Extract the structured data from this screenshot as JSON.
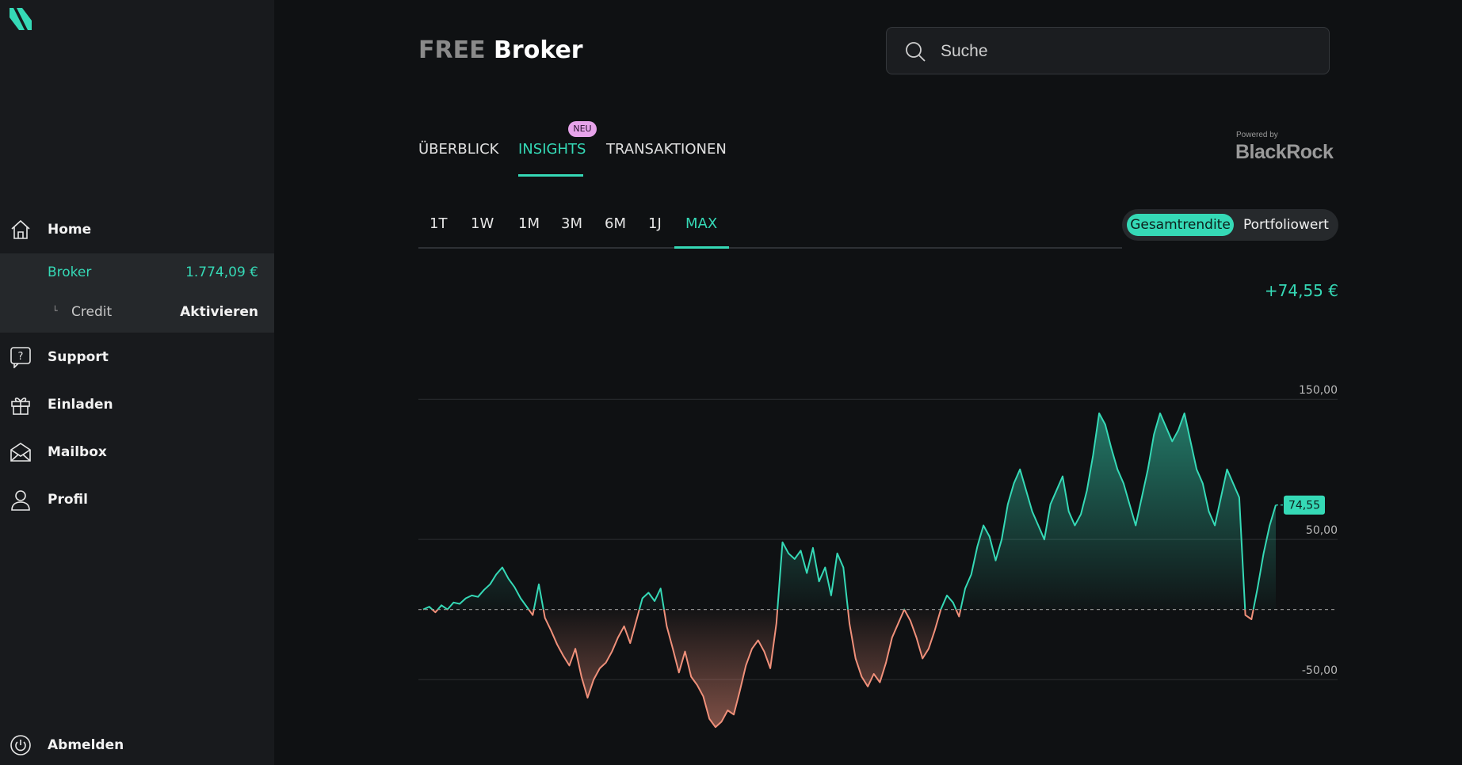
{
  "sidebar": {
    "logo_icon": "s-logo-icon",
    "home_label": "Home",
    "broker_label": "Broker",
    "broker_value": "1.774,09 €",
    "credit_corner": "└",
    "credit_label": "Credit",
    "credit_action": "Aktivieren",
    "support_label": "Support",
    "invite_label": "Einladen",
    "mail_label": "Mailbox",
    "profile_label": "Profil",
    "logout_label": "Abmelden"
  },
  "header": {
    "title_prefix": "FREE",
    "title": "Broker",
    "search_placeholder": "Suche"
  },
  "tabs": {
    "overview": "ÜBERBLICK",
    "insights": "INSIGHTS",
    "insights_badge": "NEU",
    "transactions": "TRANSAKTIONEN",
    "active": "insights"
  },
  "powered": {
    "text": "Powered by",
    "brand": "BlackRock"
  },
  "ranges": {
    "items": [
      "1T",
      "1W",
      "1M",
      "3M",
      "6M",
      "1J",
      "MAX"
    ],
    "active": "MAX"
  },
  "toggle": {
    "option1": "Gesamtrendite",
    "option2": "Portfoliowert",
    "active": "Gesamtrendite"
  },
  "summary": {
    "gain": "+74,55 €"
  },
  "colors": {
    "accent": "#35d9b6",
    "negative": "#f0907a",
    "background": "#0f1113",
    "sidebar": "#181a1d"
  },
  "chart_data": {
    "type": "area",
    "ylim": [
      -85,
      175
    ],
    "y_ticks": [
      {
        "value": 150,
        "label": "150,00"
      },
      {
        "value": 50,
        "label": "50,00"
      },
      {
        "value": -50,
        "label": "-50,00"
      }
    ],
    "baseline": 0,
    "current_value": 74.55,
    "current_label": "74,55",
    "grid": true,
    "values": [
      0,
      2,
      -2,
      3,
      0,
      5,
      4,
      8,
      10,
      9,
      14,
      18,
      25,
      30,
      22,
      16,
      8,
      2,
      -4,
      18,
      -6,
      -15,
      -25,
      -33,
      -40,
      -28,
      -48,
      -63,
      -50,
      -42,
      -38,
      -30,
      -20,
      -12,
      -24,
      -8,
      8,
      12,
      6,
      15,
      -12,
      -28,
      -45,
      -30,
      -48,
      -54,
      -62,
      -78,
      -84,
      -80,
      -72,
      -75,
      -58,
      -40,
      -28,
      -22,
      -30,
      -42,
      -10,
      48,
      40,
      36,
      42,
      26,
      44,
      20,
      30,
      10,
      40,
      30,
      -10,
      -35,
      -48,
      -55,
      -46,
      -52,
      -38,
      -20,
      -10,
      0,
      -8,
      -20,
      -35,
      -28,
      -15,
      0,
      10,
      5,
      -5,
      15,
      25,
      45,
      60,
      52,
      35,
      50,
      75,
      90,
      100,
      85,
      70,
      60,
      50,
      75,
      85,
      95,
      70,
      60,
      68,
      85,
      110,
      140,
      132,
      115,
      100,
      90,
      75,
      60,
      80,
      100,
      125,
      140,
      130,
      120,
      128,
      140,
      120,
      100,
      90,
      70,
      60,
      80,
      100,
      90,
      80,
      -4,
      -7,
      15,
      40,
      60,
      74.55
    ]
  }
}
